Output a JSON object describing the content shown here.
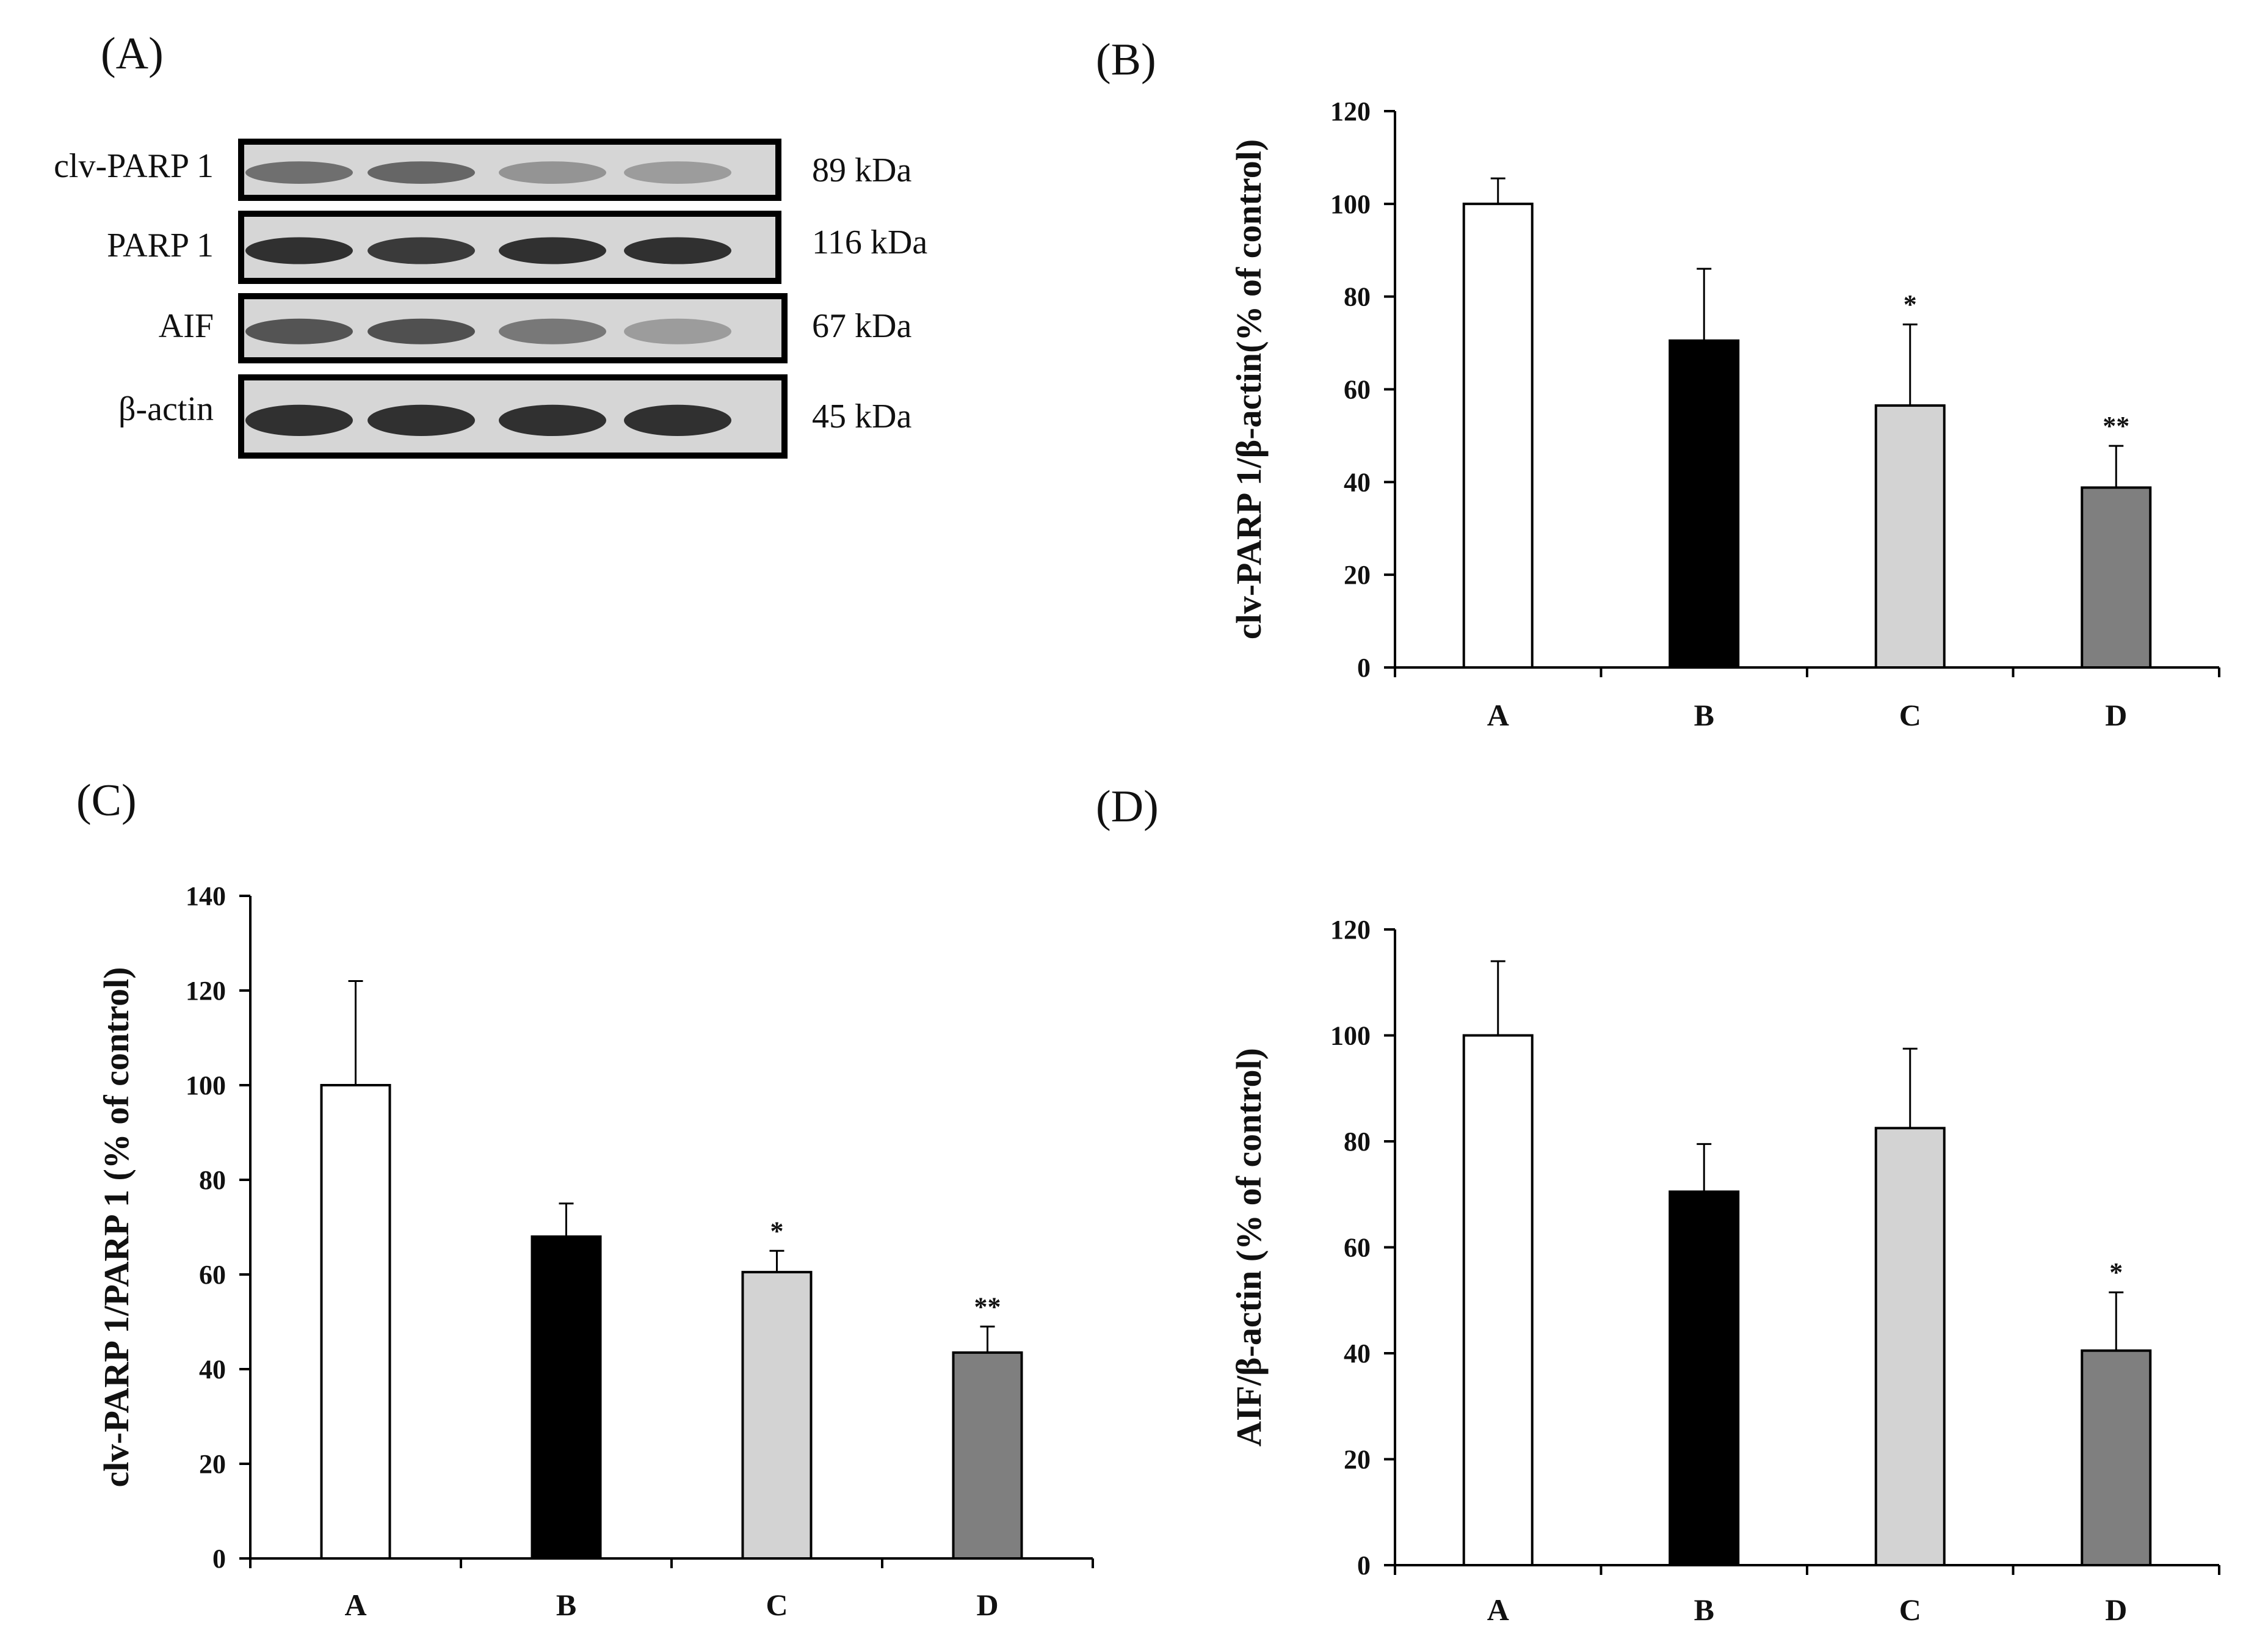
{
  "figure": {
    "panel_a": {
      "label": "(A)",
      "rows": [
        {
          "name": "clv-PARP 1",
          "kda": "89 kDa",
          "intensity": [
            0.55,
            0.6,
            0.35,
            0.3
          ]
        },
        {
          "name": "PARP 1",
          "kda": "116 kDa",
          "intensity": [
            0.9,
            0.85,
            0.9,
            0.9
          ]
        },
        {
          "name": "AIF",
          "kda": "67 kDa",
          "intensity": [
            0.7,
            0.72,
            0.5,
            0.3
          ]
        },
        {
          "name": "β-actin",
          "kda": "45 kDa",
          "intensity": [
            0.9,
            0.9,
            0.9,
            0.9
          ]
        }
      ]
    }
  },
  "chart_data": [
    {
      "type": "bar",
      "panel": "(B)",
      "title": "",
      "ylabel": "clv-PARP 1/β-actin(% of control)",
      "xlabel": "",
      "categories": [
        "A",
        "B",
        "C",
        "D"
      ],
      "values": [
        100,
        70.5,
        56.5,
        38.8
      ],
      "errors": [
        5.5,
        15.5,
        17.5,
        9
      ],
      "significance": [
        "",
        "",
        "*",
        "**"
      ],
      "ylim": [
        0,
        120
      ],
      "yticks": [
        0,
        20,
        40,
        60,
        80,
        100,
        120
      ],
      "colors": [
        "#ffffff",
        "#000000",
        "#d3d3d3",
        "#7f7f7f"
      ]
    },
    {
      "type": "bar",
      "panel": "(C)",
      "title": "",
      "ylabel": "clv-PARP 1/PARP 1 (% of control)",
      "xlabel": "",
      "categories": [
        "A",
        "B",
        "C",
        "D"
      ],
      "values": [
        100,
        68,
        60.5,
        43.5
      ],
      "errors": [
        22,
        7,
        4.5,
        5.5
      ],
      "significance": [
        "",
        "",
        "*",
        "**"
      ],
      "ylim": [
        0,
        140
      ],
      "yticks": [
        0,
        20,
        40,
        60,
        80,
        100,
        120,
        140
      ],
      "colors": [
        "#ffffff",
        "#000000",
        "#d3d3d3",
        "#7f7f7f"
      ]
    },
    {
      "type": "bar",
      "panel": "(D)",
      "title": "",
      "ylabel": "AIF/β-actin (% of control)",
      "xlabel": "",
      "categories": [
        "A",
        "B",
        "C",
        "D"
      ],
      "values": [
        100,
        70.5,
        82.5,
        40.5
      ],
      "errors": [
        14,
        9,
        15,
        11
      ],
      "significance": [
        "",
        "",
        "",
        "*"
      ],
      "ylim": [
        0,
        120
      ],
      "yticks": [
        0,
        20,
        40,
        60,
        80,
        100,
        120
      ],
      "colors": [
        "#ffffff",
        "#000000",
        "#d3d3d3",
        "#7f7f7f"
      ]
    }
  ]
}
